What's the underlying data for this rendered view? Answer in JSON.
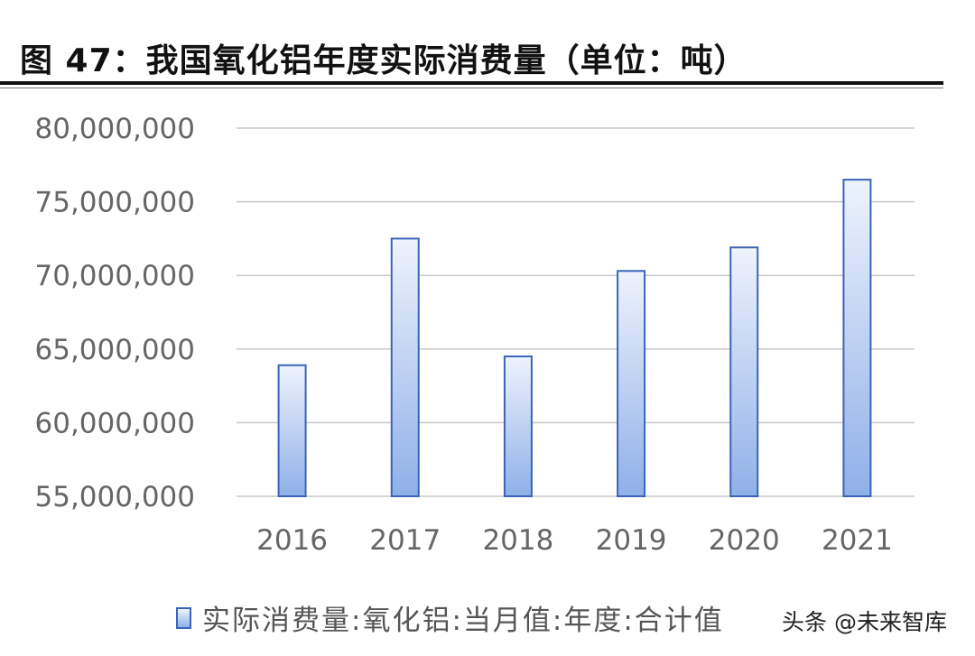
{
  "figure": {
    "title": "图 47：我国氧化铝年度实际消费量（单位：吨）"
  },
  "chart_data": {
    "type": "bar",
    "title": "",
    "xlabel": "",
    "ylabel": "",
    "categories": [
      "2016",
      "2017",
      "2018",
      "2019",
      "2020",
      "2021"
    ],
    "series": [
      {
        "name": "实际消费量:氧化铝:当月值:年度:合计值",
        "values": [
          63900000,
          72500000,
          64500000,
          70300000,
          71900000,
          76500000
        ]
      }
    ],
    "ylim": [
      55000000,
      80000000
    ],
    "yticks": [
      55000000,
      60000000,
      65000000,
      70000000,
      75000000,
      80000000
    ],
    "ytick_labels": [
      "55,000,000",
      "60,000,000",
      "65,000,000",
      "70,000,000",
      "75,000,000",
      "80,000,000"
    ],
    "grid": true,
    "legend_position": "bottom",
    "colors": {
      "bar_border": "#3b63b8",
      "bar_fill_top": "#eef3fc",
      "bar_fill_bottom": "#8fb0e8",
      "gridline": "#c8c8c8",
      "tick_text": "#666666"
    }
  },
  "watermark": {
    "text": "头条 @未来智库"
  }
}
